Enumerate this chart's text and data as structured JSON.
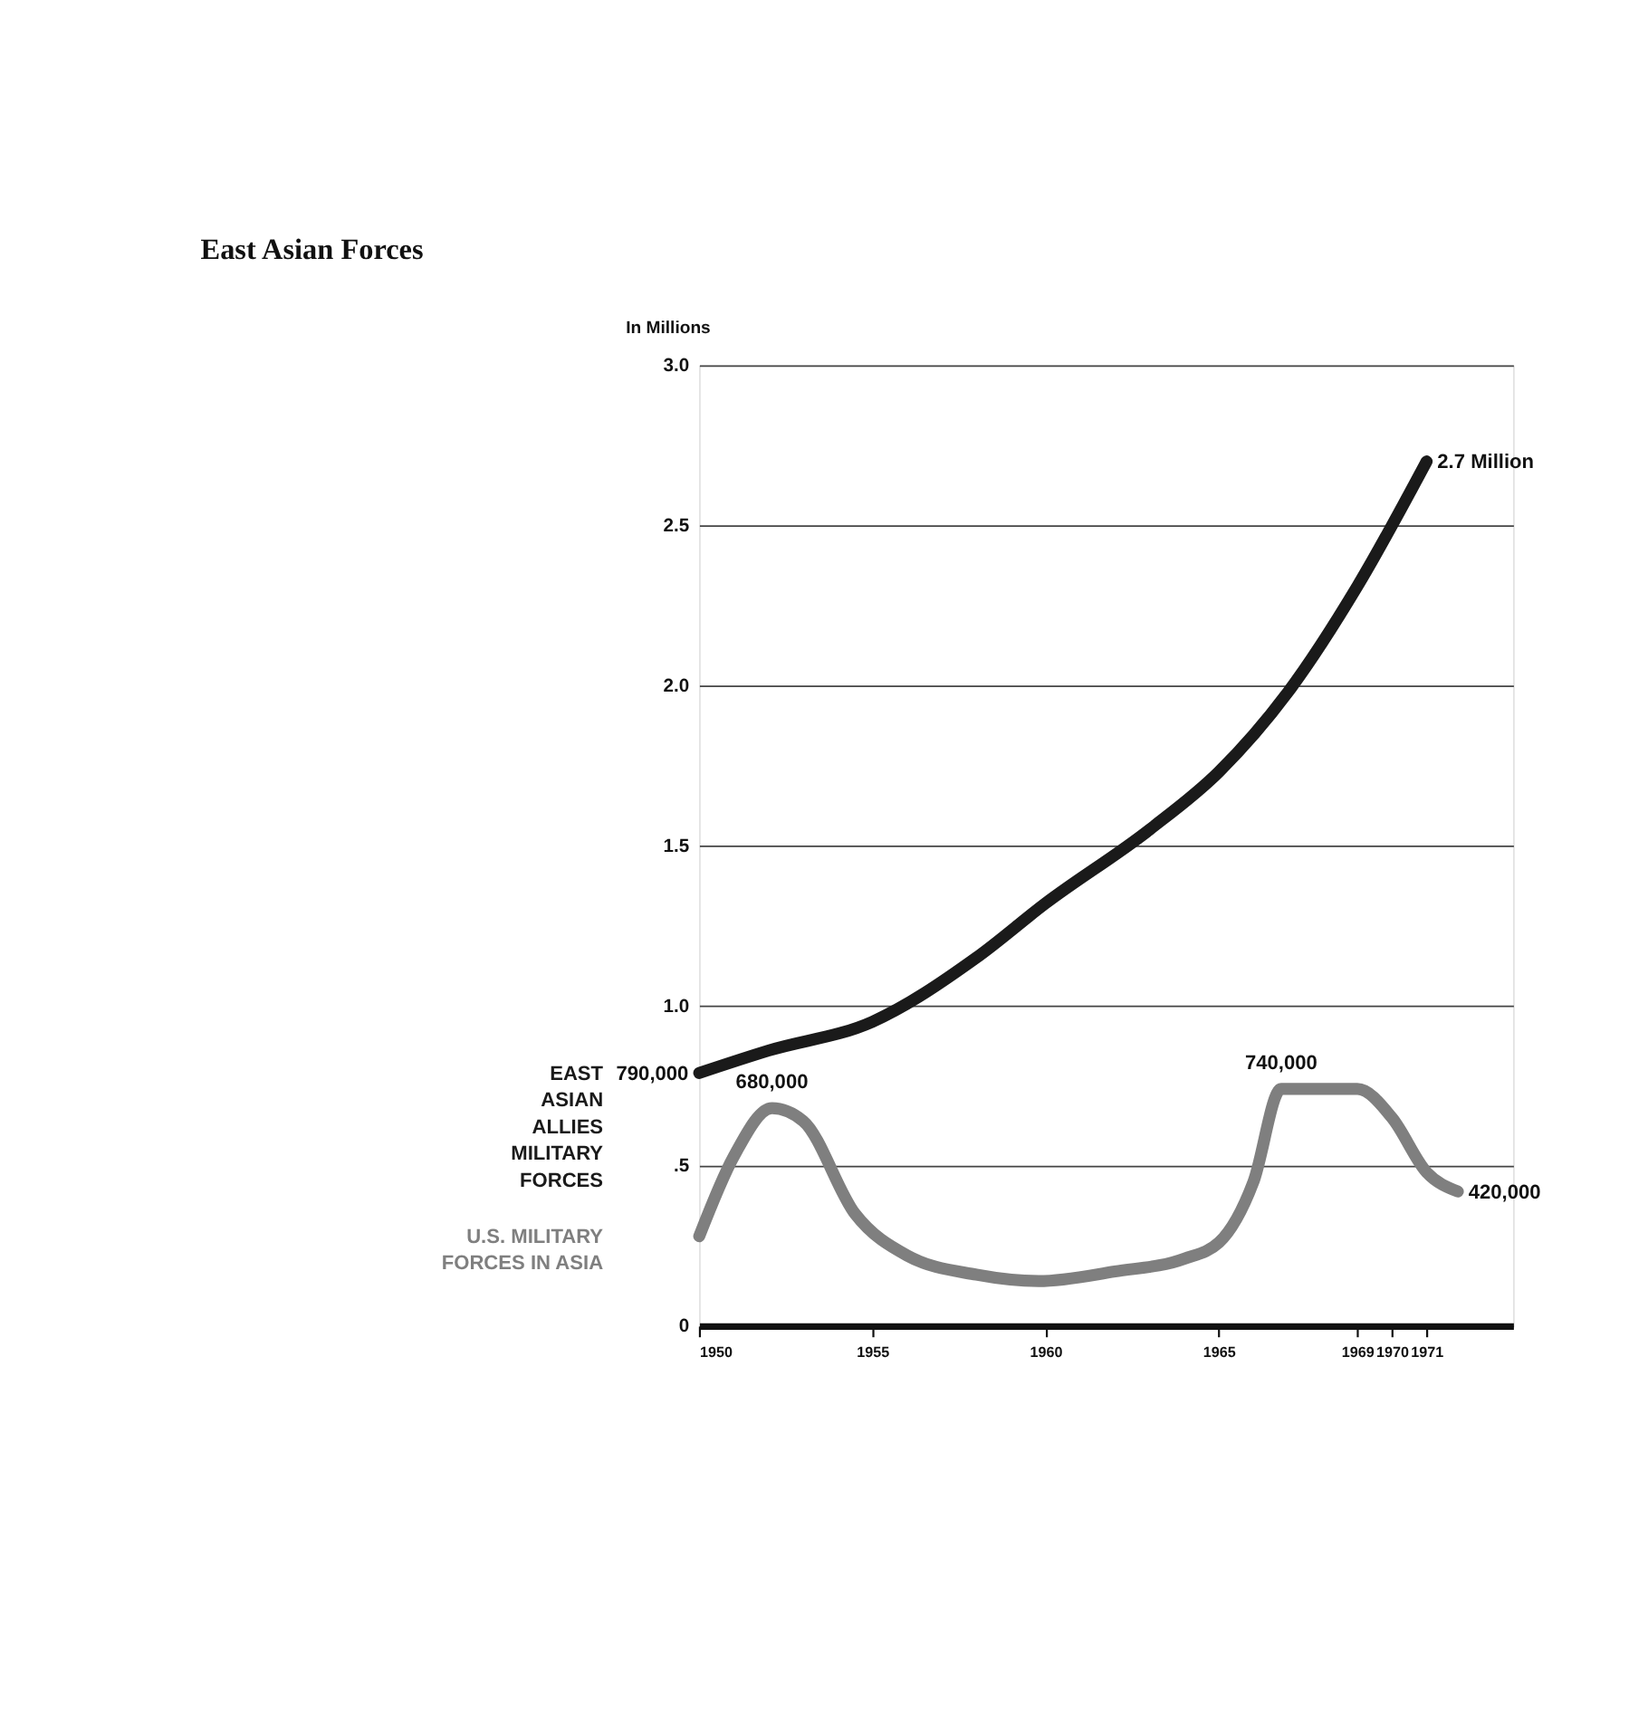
{
  "chart_data": {
    "type": "line",
    "title": "East Asian Forces",
    "ylabel": "In Millions",
    "x": [
      1950,
      1952,
      1955,
      1958,
      1960,
      1963,
      1965,
      1967,
      1969,
      1971
    ],
    "series": [
      {
        "name": "EAST\nASIAN\nALLIES\nMILITARY\nFORCES",
        "color": "#1a1a1a",
        "values": [
          0.79,
          0.86,
          0.95,
          1.15,
          1.32,
          1.55,
          1.73,
          1.98,
          2.31,
          2.7
        ]
      },
      {
        "name": "U.S. MILITARY\nFORCES IN ASIA",
        "color": "#7f7f7f",
        "x": [
          1950,
          1951,
          1952.1,
          1953,
          1954.5,
          1956,
          1958,
          1959.8,
          1962,
          1964,
          1965,
          1966,
          1966.8,
          1969,
          1970,
          1971,
          1971.9
        ],
        "values": [
          0.28,
          0.53,
          0.68,
          0.64,
          0.35,
          0.22,
          0.16,
          0.14,
          0.17,
          0.21,
          0.26,
          0.45,
          0.74,
          0.74,
          0.65,
          0.48,
          0.42
        ]
      }
    ],
    "annotations": [
      {
        "text": "790,000",
        "x": 1950,
        "y": 0.79
      },
      {
        "text": "680,000",
        "x": 1952.1,
        "y": 0.68
      },
      {
        "text": "740,000",
        "x": 1966.8,
        "y": 0.74
      },
      {
        "text": "420,000",
        "x": 1971.9,
        "y": 0.42
      },
      {
        "text": "2.7 Million",
        "x": 1971,
        "y": 2.7
      }
    ],
    "xlim": [
      1950,
      1973.5
    ],
    "xticks": [
      1950,
      1955,
      1960,
      1965,
      1969,
      1970,
      1971
    ],
    "ylim": [
      0,
      3.0
    ],
    "yticks": [
      0,
      {
        "value": 0.5,
        "label": ".5"
      },
      {
        "value": 1.0,
        "label": "1.0"
      },
      {
        "value": 1.5,
        "label": "1.5"
      },
      {
        "value": 2.0,
        "label": "2.0"
      },
      {
        "value": 2.5,
        "label": "2.5"
      },
      {
        "value": 3.0,
        "label": "3.0"
      }
    ],
    "grid": "y",
    "marker": "none",
    "line_style": "solid"
  }
}
